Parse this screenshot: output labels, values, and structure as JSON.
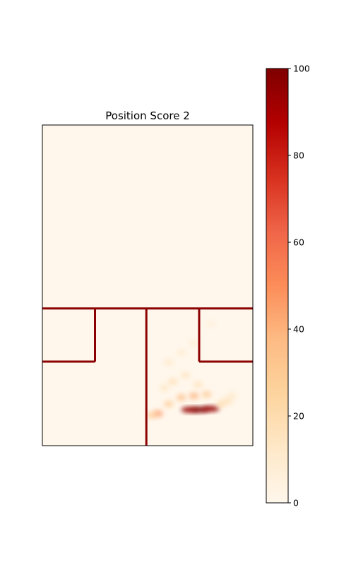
{
  "chart_data": {
    "type": "heatmap",
    "title": "Position Score 2",
    "xlabel": "",
    "ylabel": "",
    "colormap": "OrRd",
    "colorbar": {
      "range": [
        0,
        100
      ],
      "ticks": [
        "0",
        "20",
        "40",
        "60",
        "80",
        "100"
      ],
      "colors": [
        "#fff7ec",
        "#fee8c8",
        "#fdd49e",
        "#fdbb84",
        "#fc8d59",
        "#ef6548",
        "#d7301f",
        "#b30000",
        "#7f0000"
      ]
    },
    "hotspots": [
      {
        "x": 0.7,
        "y": 0.888,
        "value": 95
      },
      {
        "x": 0.75,
        "y": 0.888,
        "value": 100
      },
      {
        "x": 0.8,
        "y": 0.885,
        "value": 95
      },
      {
        "x": 0.66,
        "y": 0.85,
        "value": 35
      },
      {
        "x": 0.72,
        "y": 0.845,
        "value": 40
      },
      {
        "x": 0.78,
        "y": 0.84,
        "value": 30
      },
      {
        "x": 0.6,
        "y": 0.87,
        "value": 28
      },
      {
        "x": 0.55,
        "y": 0.9,
        "value": 45
      },
      {
        "x": 0.52,
        "y": 0.905,
        "value": 30
      },
      {
        "x": 0.62,
        "y": 0.8,
        "value": 18
      },
      {
        "x": 0.68,
        "y": 0.78,
        "value": 15
      },
      {
        "x": 0.85,
        "y": 0.87,
        "value": 22
      },
      {
        "x": 0.88,
        "y": 0.86,
        "value": 18
      },
      {
        "x": 0.6,
        "y": 0.74,
        "value": 12
      },
      {
        "x": 0.66,
        "y": 0.71,
        "value": 10
      },
      {
        "x": 0.72,
        "y": 0.68,
        "value": 8
      },
      {
        "x": 0.8,
        "y": 0.62,
        "value": 7
      },
      {
        "x": 0.58,
        "y": 0.82,
        "value": 14
      },
      {
        "x": 0.74,
        "y": 0.81,
        "value": 16
      },
      {
        "x": 0.9,
        "y": 0.845,
        "value": 12
      }
    ],
    "court_lines": [
      {
        "x1": 0.0,
        "y1": 0.572,
        "x2": 1.0,
        "y2": 0.572
      },
      {
        "x1": 0.25,
        "y1": 0.572,
        "x2": 0.25,
        "y2": 0.738
      },
      {
        "x1": 0.0,
        "y1": 0.738,
        "x2": 0.25,
        "y2": 0.738
      },
      {
        "x1": 0.494,
        "y1": 0.572,
        "x2": 0.494,
        "y2": 1.0
      },
      {
        "x1": 0.745,
        "y1": 0.572,
        "x2": 0.745,
        "y2": 0.738
      },
      {
        "x1": 0.745,
        "y1": 0.738,
        "x2": 1.0,
        "y2": 0.738
      }
    ],
    "line_color": "#8b0000"
  }
}
